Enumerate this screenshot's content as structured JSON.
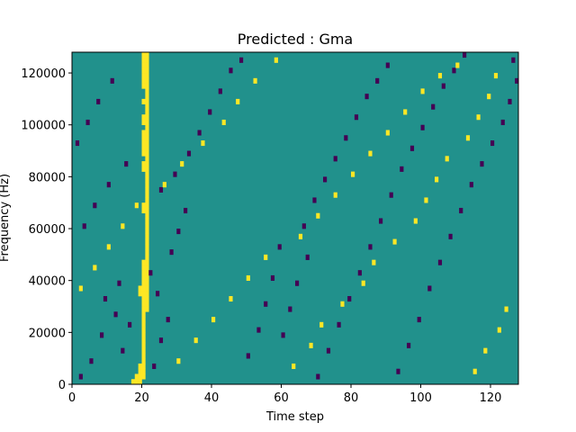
{
  "chart_data": {
    "type": "heatmap",
    "title": "Predicted : Gma",
    "xlabel": "Time step",
    "ylabel": "Frequency (Hz)",
    "xlim": [
      0,
      128
    ],
    "ylim": [
      0,
      128000
    ],
    "xticks": [
      0,
      20,
      40,
      60,
      80,
      100,
      120
    ],
    "xtick_labels": [
      "0",
      "20",
      "40",
      "60",
      "80",
      "100",
      "120"
    ],
    "yticks": [
      0,
      20000,
      40000,
      60000,
      80000,
      100000,
      120000
    ],
    "ytick_labels": [
      "0",
      "20000",
      "40000",
      "60000",
      "80000",
      "100000",
      "120000"
    ],
    "grid": false,
    "colormap": "viridis",
    "colors": {
      "background": "#21918c",
      "low": "#440154",
      "high": "#fde725"
    },
    "bins": {
      "time_steps": 128,
      "frequency_bins": 64,
      "bin_height_hz": 2000
    },
    "cell_values": {
      "low": -1,
      "high": 1,
      "baseline": 0
    },
    "cells": [
      [
        17,
        0,
        1
      ],
      [
        18,
        0,
        1
      ],
      [
        19,
        0,
        1
      ],
      [
        18,
        1,
        1
      ],
      [
        19,
        1,
        1
      ],
      [
        20,
        1,
        1
      ],
      [
        19,
        2,
        1
      ],
      [
        20,
        2,
        1
      ],
      [
        19,
        3,
        1
      ],
      [
        20,
        3,
        1
      ],
      [
        20,
        4,
        1
      ],
      [
        20,
        5,
        1
      ],
      [
        20,
        6,
        1
      ],
      [
        20,
        7,
        1
      ],
      [
        20,
        8,
        1
      ],
      [
        20,
        9,
        1
      ],
      [
        20,
        10,
        1
      ],
      [
        20,
        11,
        1
      ],
      [
        20,
        12,
        1
      ],
      [
        20,
        13,
        1
      ],
      [
        20,
        14,
        1
      ],
      [
        21,
        14,
        1
      ],
      [
        20,
        15,
        1
      ],
      [
        21,
        15,
        1
      ],
      [
        20,
        16,
        1
      ],
      [
        21,
        16,
        1
      ],
      [
        19,
        17,
        1
      ],
      [
        20,
        17,
        1
      ],
      [
        21,
        17,
        1
      ],
      [
        19,
        18,
        1
      ],
      [
        20,
        18,
        1
      ],
      [
        21,
        18,
        1
      ],
      [
        20,
        19,
        1
      ],
      [
        21,
        19,
        1
      ],
      [
        20,
        20,
        1
      ],
      [
        21,
        20,
        1
      ],
      [
        20,
        21,
        1
      ],
      [
        21,
        21,
        1
      ],
      [
        20,
        22,
        1
      ],
      [
        21,
        22,
        1
      ],
      [
        20,
        23,
        1
      ],
      [
        21,
        23,
        1
      ],
      [
        21,
        24,
        1
      ],
      [
        21,
        25,
        1
      ],
      [
        21,
        26,
        1
      ],
      [
        21,
        27,
        1
      ],
      [
        21,
        28,
        1
      ],
      [
        21,
        29,
        1
      ],
      [
        21,
        30,
        1
      ],
      [
        21,
        31,
        1
      ],
      [
        21,
        32,
        1
      ],
      [
        20,
        33,
        1
      ],
      [
        21,
        33,
        1
      ],
      [
        20,
        34,
        1
      ],
      [
        21,
        34,
        1
      ],
      [
        21,
        35,
        1
      ],
      [
        21,
        36,
        1
      ],
      [
        21,
        37,
        1
      ],
      [
        21,
        38,
        1
      ],
      [
        21,
        39,
        1
      ],
      [
        21,
        40,
        1
      ],
      [
        20,
        41,
        1
      ],
      [
        21,
        41,
        1
      ],
      [
        20,
        42,
        1
      ],
      [
        21,
        42,
        1
      ],
      [
        21,
        43,
        1
      ],
      [
        20,
        44,
        1
      ],
      [
        21,
        44,
        1
      ],
      [
        20,
        45,
        1
      ],
      [
        21,
        45,
        1
      ],
      [
        20,
        46,
        1
      ],
      [
        21,
        46,
        1
      ],
      [
        20,
        47,
        1
      ],
      [
        21,
        47,
        1
      ],
      [
        20,
        48,
        1
      ],
      [
        21,
        48,
        1
      ],
      [
        21,
        49,
        1
      ],
      [
        20,
        50,
        1
      ],
      [
        21,
        50,
        1
      ],
      [
        20,
        51,
        1
      ],
      [
        21,
        51,
        1
      ],
      [
        21,
        52,
        1
      ],
      [
        21,
        53,
        1
      ],
      [
        20,
        54,
        1
      ],
      [
        21,
        54,
        1
      ],
      [
        21,
        55,
        1
      ],
      [
        21,
        56,
        1
      ],
      [
        20,
        57,
        1
      ],
      [
        21,
        57,
        1
      ],
      [
        20,
        58,
        1
      ],
      [
        21,
        58,
        1
      ],
      [
        20,
        59,
        1
      ],
      [
        21,
        59,
        1
      ],
      [
        20,
        60,
        1
      ],
      [
        21,
        60,
        1
      ],
      [
        20,
        61,
        1
      ],
      [
        21,
        61,
        1
      ],
      [
        20,
        62,
        1
      ],
      [
        21,
        62,
        1
      ],
      [
        20,
        63,
        1
      ],
      [
        21,
        63,
        1
      ],
      [
        2,
        1,
        -1
      ],
      [
        5,
        4,
        -1
      ],
      [
        8,
        9,
        -1
      ],
      [
        12,
        13,
        -1
      ],
      [
        14,
        6,
        -1
      ],
      [
        16,
        11,
        -1
      ],
      [
        9,
        16,
        -1
      ],
      [
        13,
        19,
        -1
      ],
      [
        23,
        3,
        -1
      ],
      [
        25,
        8,
        -1
      ],
      [
        27,
        12,
        -1
      ],
      [
        24,
        17,
        -1
      ],
      [
        22,
        21,
        -1
      ],
      [
        28,
        25,
        -1
      ],
      [
        30,
        29,
        -1
      ],
      [
        32,
        33,
        -1
      ],
      [
        25,
        37,
        -1
      ],
      [
        29,
        40,
        -1
      ],
      [
        33,
        44,
        -1
      ],
      [
        36,
        48,
        -1
      ],
      [
        39,
        52,
        -1
      ],
      [
        42,
        56,
        -1
      ],
      [
        45,
        60,
        -1
      ],
      [
        48,
        62,
        -1
      ],
      [
        50,
        5,
        -1
      ],
      [
        53,
        10,
        -1
      ],
      [
        55,
        15,
        -1
      ],
      [
        57,
        20,
        -1
      ],
      [
        59,
        26,
        -1
      ],
      [
        66,
        30,
        -1
      ],
      [
        69,
        35,
        -1
      ],
      [
        72,
        39,
        -1
      ],
      [
        75,
        43,
        -1
      ],
      [
        78,
        47,
        -1
      ],
      [
        81,
        51,
        -1
      ],
      [
        84,
        55,
        -1
      ],
      [
        87,
        58,
        -1
      ],
      [
        90,
        61,
        -1
      ],
      [
        93,
        2,
        -1
      ],
      [
        96,
        7,
        -1
      ],
      [
        99,
        12,
        -1
      ],
      [
        102,
        18,
        -1
      ],
      [
        105,
        23,
        -1
      ],
      [
        108,
        28,
        -1
      ],
      [
        111,
        33,
        -1
      ],
      [
        114,
        38,
        -1
      ],
      [
        117,
        42,
        -1
      ],
      [
        120,
        46,
        -1
      ],
      [
        123,
        50,
        -1
      ],
      [
        125,
        54,
        -1
      ],
      [
        127,
        58,
        -1
      ],
      [
        126,
        62,
        -1
      ],
      [
        3,
        30,
        -1
      ],
      [
        6,
        34,
        -1
      ],
      [
        10,
        38,
        -1
      ],
      [
        15,
        42,
        -1
      ],
      [
        1,
        46,
        -1
      ],
      [
        4,
        50,
        -1
      ],
      [
        7,
        54,
        -1
      ],
      [
        11,
        58,
        -1
      ],
      [
        60,
        9,
        -1
      ],
      [
        62,
        14,
        -1
      ],
      [
        64,
        19,
        -1
      ],
      [
        67,
        24,
        -1
      ],
      [
        70,
        1,
        -1
      ],
      [
        73,
        6,
        -1
      ],
      [
        76,
        11,
        -1
      ],
      [
        79,
        16,
        -1
      ],
      [
        82,
        21,
        -1
      ],
      [
        85,
        26,
        -1
      ],
      [
        88,
        31,
        -1
      ],
      [
        91,
        36,
        -1
      ],
      [
        94,
        41,
        -1
      ],
      [
        97,
        45,
        -1
      ],
      [
        100,
        49,
        -1
      ],
      [
        103,
        53,
        -1
      ],
      [
        106,
        57,
        -1
      ],
      [
        109,
        60,
        -1
      ],
      [
        112,
        63,
        -1
      ],
      [
        30,
        4,
        1
      ],
      [
        35,
        8,
        1
      ],
      [
        40,
        12,
        1
      ],
      [
        45,
        16,
        1
      ],
      [
        50,
        20,
        1
      ],
      [
        55,
        24,
        1
      ],
      [
        65,
        28,
        1
      ],
      [
        70,
        32,
        1
      ],
      [
        75,
        36,
        1
      ],
      [
        80,
        40,
        1
      ],
      [
        85,
        44,
        1
      ],
      [
        90,
        48,
        1
      ],
      [
        95,
        52,
        1
      ],
      [
        100,
        56,
        1
      ],
      [
        105,
        59,
        1
      ],
      [
        110,
        61,
        1
      ],
      [
        115,
        2,
        1
      ],
      [
        118,
        6,
        1
      ],
      [
        122,
        10,
        1
      ],
      [
        124,
        14,
        1
      ],
      [
        2,
        18,
        1
      ],
      [
        6,
        22,
        1
      ],
      [
        10,
        26,
        1
      ],
      [
        14,
        30,
        1
      ],
      [
        18,
        34,
        1
      ],
      [
        26,
        38,
        1
      ],
      [
        31,
        42,
        1
      ],
      [
        37,
        46,
        1
      ],
      [
        43,
        50,
        1
      ],
      [
        47,
        54,
        1
      ],
      [
        52,
        58,
        1
      ],
      [
        58,
        62,
        1
      ],
      [
        63,
        3,
        1
      ],
      [
        68,
        7,
        1
      ],
      [
        71,
        11,
        1
      ],
      [
        77,
        15,
        1
      ],
      [
        83,
        19,
        1
      ],
      [
        86,
        23,
        1
      ],
      [
        92,
        27,
        1
      ],
      [
        98,
        31,
        1
      ],
      [
        101,
        35,
        1
      ],
      [
        104,
        39,
        1
      ],
      [
        107,
        43,
        1
      ],
      [
        113,
        47,
        1
      ],
      [
        116,
        51,
        1
      ],
      [
        119,
        55,
        1
      ],
      [
        121,
        59,
        1
      ]
    ]
  }
}
